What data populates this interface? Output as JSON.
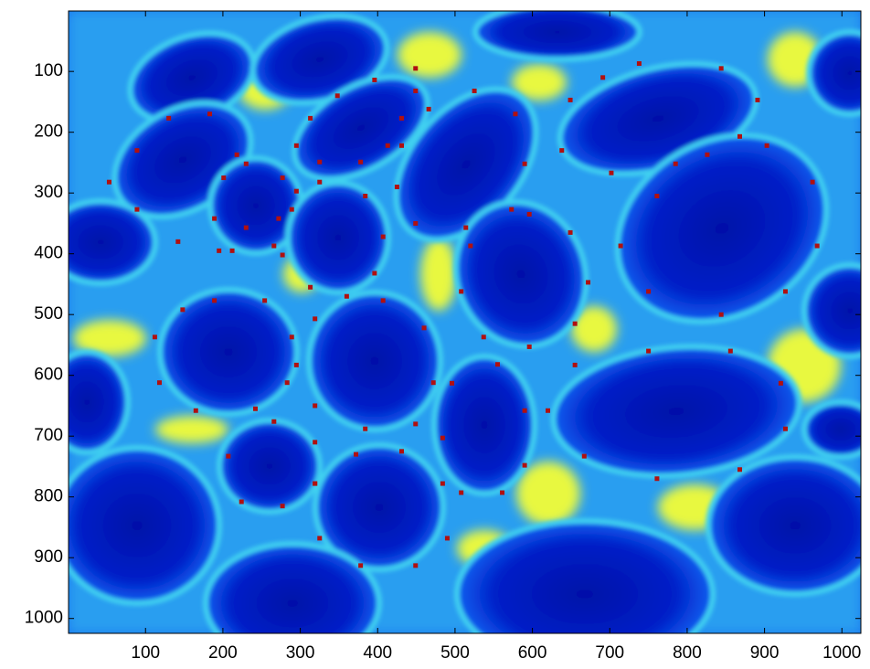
{
  "chart_data": {
    "type": "scatter",
    "xlim": [
      0.5,
      1024.5
    ],
    "ylim": [
      1024.5,
      0.5
    ],
    "xticks": [
      100,
      200,
      300,
      400,
      500,
      600,
      700,
      800,
      900,
      1000
    ],
    "yticks": [
      100,
      200,
      300,
      400,
      500,
      600,
      700,
      800,
      900,
      1000
    ],
    "series": [
      {
        "color": "#b01010",
        "x": [
          449,
          396,
          348,
          313,
          295,
          325,
          378,
          413,
          431,
          449
        ],
        "values": [
          95,
          114,
          140,
          177,
          222,
          249,
          249,
          222,
          177,
          132
        ]
      },
      {
        "color": "#b01010",
        "x": [
          183,
          130,
          89,
          53,
          89,
          142,
          195,
          230,
          218
        ],
        "values": [
          170,
          177,
          230,
          282,
          327,
          380,
          395,
          357,
          237
        ]
      },
      {
        "color": "#b01010",
        "x": [
          325,
          384,
          407,
          396,
          360,
          313,
          277,
          272,
          295
        ],
        "values": [
          282,
          305,
          372,
          432,
          470,
          455,
          402,
          342,
          297
        ]
      },
      {
        "color": "#b01010",
        "x": [
          230,
          277,
          289,
          266,
          212,
          189,
          201
        ],
        "values": [
          252,
          275,
          327,
          387,
          395,
          342,
          275
        ]
      },
      {
        "color": "#b01010",
        "x": [
          525,
          578,
          590,
          573,
          514,
          449,
          425,
          431,
          466
        ],
        "values": [
          132,
          170,
          252,
          327,
          357,
          350,
          290,
          222,
          162
        ]
      },
      {
        "color": "#b01010",
        "x": [
          738,
          844,
          891,
          868,
          785,
          702,
          638,
          649,
          691
        ],
        "values": [
          87,
          95,
          147,
          207,
          252,
          267,
          230,
          147,
          110
        ]
      },
      {
        "color": "#b01010",
        "x": [
          596,
          649,
          672,
          655,
          596,
          537,
          508,
          520
        ],
        "values": [
          335,
          365,
          447,
          515,
          553,
          537,
          462,
          387
        ]
      },
      {
        "color": "#b01010",
        "x": [
          903,
          962,
          968,
          927,
          844,
          750,
          714,
          761,
          826
        ],
        "values": [
          222,
          282,
          387,
          462,
          500,
          462,
          387,
          305,
          237
        ]
      },
      {
        "color": "#b01010",
        "x": [
          189,
          254,
          289,
          283,
          242,
          165,
          118,
          112,
          148
        ],
        "values": [
          477,
          477,
          537,
          612,
          655,
          658,
          612,
          537,
          492
        ]
      },
      {
        "color": "#b01010",
        "x": [
          407,
          460,
          472,
          449,
          384,
          319,
          295,
          319
        ],
        "values": [
          477,
          522,
          612,
          680,
          688,
          650,
          583,
          507
        ]
      },
      {
        "color": "#b01010",
        "x": [
          555,
          590,
          590,
          561,
          508,
          484,
          496
        ],
        "values": [
          582,
          658,
          748,
          793,
          793,
          703,
          613
        ]
      },
      {
        "color": "#b01010",
        "x": [
          750,
          856,
          921,
          927,
          868,
          761,
          667,
          620,
          655
        ],
        "values": [
          560,
          560,
          613,
          688,
          755,
          770,
          733,
          658,
          583
        ]
      },
      {
        "color": "#b01010",
        "x": [
          266,
          319,
          319,
          277,
          224,
          207
        ],
        "values": [
          676,
          710,
          778,
          815,
          808,
          733
        ]
      },
      {
        "color": "#b01010",
        "x": [
          431,
          484,
          490,
          449,
          378,
          325,
          319,
          372
        ],
        "values": [
          725,
          778,
          868,
          913,
          913,
          868,
          778,
          730
        ]
      }
    ]
  }
}
